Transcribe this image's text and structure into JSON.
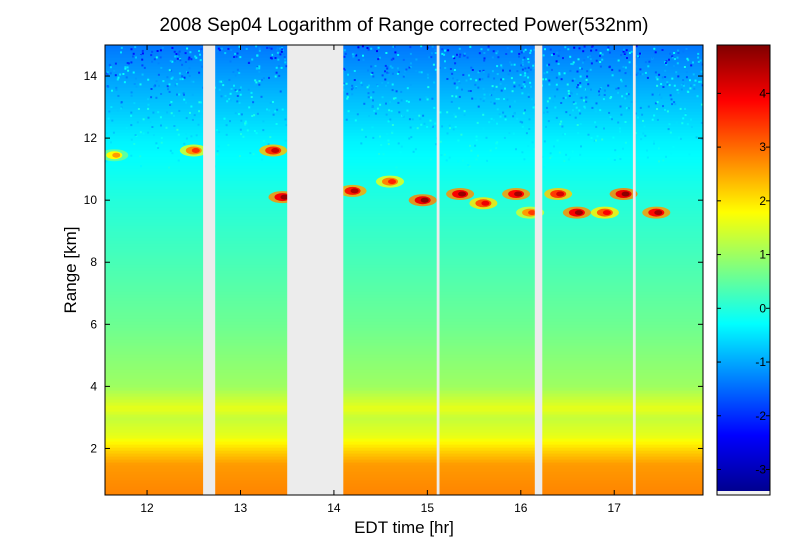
{
  "chart_data": {
    "type": "heatmap",
    "title": "2008 Sep04  Logarithm of Range corrected Power(532nm)",
    "xlabel": "EDT time [hr]",
    "ylabel": "Range [km]",
    "xlim": [
      11.55,
      17.95
    ],
    "ylim": [
      0.5,
      15.0
    ],
    "x_ticks": [
      12,
      13,
      14,
      15,
      16,
      17
    ],
    "x_tick_labels": [
      "12",
      "13",
      "14",
      "15",
      "16",
      "17"
    ],
    "y_ticks": [
      2,
      4,
      6,
      8,
      10,
      12,
      14
    ],
    "y_tick_labels": [
      "2",
      "4",
      "6",
      "8",
      "10",
      "12",
      "14"
    ],
    "colorbar": {
      "colormap": "jet",
      "range": [
        -3.4,
        4.9
      ],
      "ticks": [
        -3,
        -2,
        -1,
        0,
        1,
        2,
        3,
        4
      ],
      "tick_labels": [
        "-3",
        "-2",
        "-1",
        "0",
        "1",
        "2",
        "3",
        "4"
      ]
    },
    "data_gaps_hr": [
      [
        12.6,
        12.73
      ],
      [
        13.5,
        14.1
      ],
      [
        15.1,
        15.13
      ],
      [
        16.15,
        16.23
      ],
      [
        17.2,
        17.23
      ]
    ],
    "value_profile": [
      {
        "range_km": 0.5,
        "value": 2.8
      },
      {
        "range_km": 1.5,
        "value": 2.6
      },
      {
        "range_km": 1.9,
        "value": 2.2
      },
      {
        "range_km": 2.4,
        "value": 1.6
      },
      {
        "range_km": 3.0,
        "value": 1.3
      },
      {
        "range_km": 3.3,
        "value": 1.6
      },
      {
        "range_km": 4.0,
        "value": 1.0
      },
      {
        "range_km": 6.0,
        "value": 0.6
      },
      {
        "range_km": 8.0,
        "value": 0.3
      },
      {
        "range_km": 10.0,
        "value": 0.0
      },
      {
        "range_km": 12.0,
        "value": -0.4
      },
      {
        "range_km": 13.5,
        "value": -0.9
      },
      {
        "range_km": 15.0,
        "value": -1.4
      }
    ],
    "cloud_features": [
      {
        "time_hr": 11.65,
        "range_km": 11.45,
        "value": 2.6
      },
      {
        "time_hr": 12.5,
        "range_km": 11.6,
        "value": 3.5
      },
      {
        "time_hr": 13.35,
        "range_km": 11.6,
        "value": 4.3
      },
      {
        "time_hr": 13.45,
        "range_km": 10.1,
        "value": 4.7
      },
      {
        "time_hr": 14.2,
        "range_km": 10.3,
        "value": 4.5
      },
      {
        "time_hr": 14.6,
        "range_km": 10.6,
        "value": 3.6
      },
      {
        "time_hr": 14.95,
        "range_km": 10.0,
        "value": 4.8
      },
      {
        "time_hr": 15.35,
        "range_km": 10.2,
        "value": 4.7
      },
      {
        "time_hr": 15.6,
        "range_km": 9.9,
        "value": 4.0
      },
      {
        "time_hr": 15.95,
        "range_km": 10.2,
        "value": 4.6
      },
      {
        "time_hr": 16.1,
        "range_km": 9.6,
        "value": 3.4
      },
      {
        "time_hr": 16.4,
        "range_km": 10.2,
        "value": 4.2
      },
      {
        "time_hr": 16.6,
        "range_km": 9.6,
        "value": 4.7
      },
      {
        "time_hr": 16.9,
        "range_km": 9.6,
        "value": 3.9
      },
      {
        "time_hr": 17.1,
        "range_km": 10.2,
        "value": 4.8
      },
      {
        "time_hr": 17.45,
        "range_km": 9.6,
        "value": 4.6
      }
    ]
  }
}
